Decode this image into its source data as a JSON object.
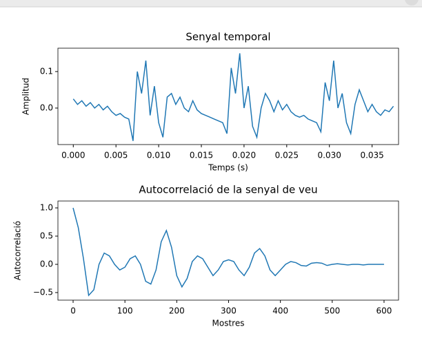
{
  "chart_data": [
    {
      "type": "line",
      "title": "Senyal temporal",
      "xlabel": "Temps (s)",
      "ylabel": "Amplitud",
      "x": [
        0.0,
        0.0005,
        0.001,
        0.0015,
        0.002,
        0.0025,
        0.003,
        0.0035,
        0.004,
        0.0045,
        0.005,
        0.0055,
        0.006,
        0.0065,
        0.007,
        0.0075,
        0.008,
        0.0085,
        0.009,
        0.0095,
        0.01,
        0.0105,
        0.011,
        0.0115,
        0.012,
        0.0125,
        0.013,
        0.0135,
        0.014,
        0.0145,
        0.015,
        0.0155,
        0.016,
        0.0165,
        0.017,
        0.0175,
        0.018,
        0.0185,
        0.019,
        0.0195,
        0.02,
        0.0205,
        0.021,
        0.0215,
        0.022,
        0.0225,
        0.023,
        0.0235,
        0.024,
        0.0245,
        0.025,
        0.0255,
        0.026,
        0.0265,
        0.027,
        0.0275,
        0.028,
        0.0285,
        0.029,
        0.0295,
        0.03,
        0.0305,
        0.031,
        0.0315,
        0.032,
        0.0325,
        0.033,
        0.0335,
        0.034,
        0.0345,
        0.035,
        0.0355,
        0.036,
        0.0365,
        0.037,
        0.0375
      ],
      "series": [
        {
          "color": "#1f77b4",
          "values": [
            0.025,
            0.01,
            0.02,
            0.005,
            0.015,
            0.0,
            0.01,
            -0.005,
            0.005,
            -0.01,
            -0.02,
            -0.015,
            -0.025,
            -0.03,
            -0.09,
            0.1,
            0.04,
            0.13,
            -0.02,
            0.06,
            -0.04,
            -0.08,
            0.03,
            0.04,
            0.01,
            0.03,
            0.0,
            -0.01,
            0.02,
            -0.005,
            -0.015,
            -0.02,
            -0.025,
            -0.03,
            -0.035,
            -0.04,
            -0.07,
            0.11,
            0.04,
            0.15,
            0.0,
            0.06,
            -0.05,
            -0.08,
            0.0,
            0.04,
            0.02,
            -0.01,
            0.02,
            -0.005,
            0.01,
            -0.01,
            -0.02,
            -0.025,
            -0.02,
            -0.03,
            -0.035,
            -0.04,
            -0.065,
            0.07,
            0.02,
            0.13,
            0.0,
            0.04,
            -0.04,
            -0.07,
            0.01,
            0.05,
            0.02,
            -0.01,
            0.01,
            -0.01,
            -0.02,
            -0.005,
            -0.01,
            0.005
          ]
        }
      ],
      "xlim": [
        -0.0018,
        0.0381
      ],
      "ylim": [
        -0.1,
        0.164
      ],
      "xticks": [
        {
          "value": 0,
          "label": "0.000"
        },
        {
          "value": 0.005,
          "label": "0.005"
        },
        {
          "value": 0.01,
          "label": "0.010"
        },
        {
          "value": 0.015,
          "label": "0.015"
        },
        {
          "value": 0.02,
          "label": "0.020"
        },
        {
          "value": 0.025,
          "label": "0.025"
        },
        {
          "value": 0.03,
          "label": "0.030"
        },
        {
          "value": 0.035,
          "label": "0.035"
        }
      ],
      "yticks": [
        {
          "value": 0,
          "label": "0.0"
        },
        0.1
      ]
    },
    {
      "type": "line",
      "title": "Autocorrelació de la senyal de veu",
      "xlabel": "Mostres",
      "ylabel": "Autocorrelació",
      "x": [
        0,
        10,
        20,
        30,
        40,
        50,
        60,
        70,
        80,
        90,
        100,
        110,
        120,
        130,
        140,
        150,
        160,
        170,
        180,
        190,
        200,
        210,
        220,
        230,
        240,
        250,
        260,
        270,
        280,
        290,
        300,
        310,
        320,
        330,
        340,
        350,
        360,
        370,
        380,
        390,
        400,
        410,
        420,
        430,
        440,
        450,
        460,
        470,
        480,
        490,
        500,
        510,
        520,
        530,
        540,
        550,
        560,
        570,
        580,
        590,
        600
      ],
      "series": [
        {
          "color": "#1f77b4",
          "values": [
            1.0,
            0.65,
            0.1,
            -0.55,
            -0.45,
            0.0,
            0.2,
            0.15,
            0.0,
            -0.1,
            -0.05,
            0.1,
            0.15,
            0.0,
            -0.3,
            -0.35,
            -0.1,
            0.4,
            0.6,
            0.3,
            -0.2,
            -0.4,
            -0.25,
            0.05,
            0.15,
            0.1,
            -0.05,
            -0.2,
            -0.1,
            0.05,
            0.08,
            0.05,
            -0.1,
            -0.2,
            -0.05,
            0.2,
            0.28,
            0.15,
            -0.1,
            -0.2,
            -0.1,
            0.0,
            0.05,
            0.03,
            -0.02,
            -0.03,
            0.02,
            0.03,
            0.02,
            -0.02,
            0.0,
            0.01,
            0.0,
            -0.01,
            0.0,
            0.0,
            -0.01,
            0.0,
            0.0,
            0.0,
            0.0
          ]
        }
      ],
      "xlim": [
        -29.3,
        628
      ],
      "ylim": [
        -0.634,
        1.122
      ],
      "xticks": [
        0,
        100,
        200,
        300,
        400,
        500,
        600
      ],
      "yticks": [
        {
          "value": -0.5,
          "label": "−0.5"
        },
        {
          "value": 0,
          "label": "0.0"
        },
        0.5,
        {
          "value": 1,
          "label": "1.0"
        }
      ]
    }
  ]
}
